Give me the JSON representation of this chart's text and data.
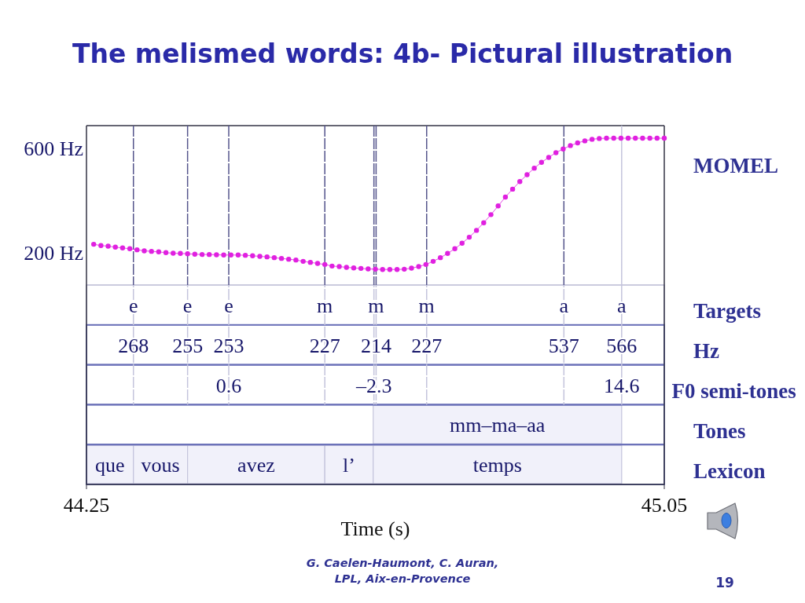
{
  "chart_data": {
    "type": "line",
    "title": "The melismed words: 4b- Pictural illustration",
    "xlabel": "Time (s)",
    "xlim": [
      44.25,
      45.05
    ],
    "xticks": [
      44.25,
      45.05
    ],
    "ylim": [
      -680,
      687
    ],
    "yticks": [
      {
        "value": 200,
        "label": "200 Hz"
      },
      {
        "value": 600,
        "label": "600 Hz"
      }
    ],
    "marker": "circle",
    "series": [
      {
        "name": "MOMEL",
        "color": "#e020e0",
        "x": [
          44.26,
          44.27,
          44.28,
          44.29,
          44.3,
          44.31,
          44.32,
          44.33,
          44.34,
          44.35,
          44.36,
          44.37,
          44.38,
          44.39,
          44.4,
          44.41,
          44.42,
          44.43,
          44.44,
          44.45,
          44.46,
          44.47,
          44.48,
          44.49,
          44.5,
          44.51,
          44.52,
          44.53,
          44.54,
          44.55,
          44.56,
          44.57,
          44.58,
          44.59,
          44.6,
          44.61,
          44.62,
          44.63,
          44.64,
          44.65,
          44.66,
          44.67,
          44.68,
          44.69,
          44.7,
          44.71,
          44.72,
          44.73,
          44.74,
          44.75,
          44.76,
          44.77,
          44.78,
          44.79,
          44.8,
          44.81,
          44.82,
          44.83,
          44.84,
          44.85,
          44.86,
          44.87,
          44.88,
          44.89,
          44.9,
          44.91,
          44.92,
          44.93,
          44.94,
          44.95,
          44.96,
          44.97,
          44.98,
          44.99,
          45.0,
          45.01,
          45.02,
          45.03,
          45.04,
          45.05
        ],
        "values": [
          235,
          230,
          228,
          224,
          221,
          218,
          214,
          210,
          208,
          206,
          203,
          201,
          200,
          199,
          197,
          196,
          196,
          195,
          194,
          194,
          194,
          193,
          191,
          189,
          187,
          184,
          181,
          178,
          175,
          170,
          166,
          162,
          158,
          152,
          150,
          147,
          145,
          143,
          141,
          140,
          139,
          139,
          139,
          140,
          144,
          150,
          158,
          170,
          184,
          200,
          218,
          239,
          262,
          288,
          317,
          348,
          381,
          415,
          445,
          474,
          500,
          525,
          547,
          566,
          584,
          598,
          611,
          621,
          629,
          635,
          638,
          639,
          639,
          639,
          639,
          639,
          639,
          639,
          639,
          639
        ]
      }
    ],
    "ref_lines": [
      {
        "axis": "x",
        "value": 44.315,
        "color": "#55558c",
        "line_style": "dashed"
      },
      {
        "axis": "x",
        "value": 44.39,
        "color": "#55558c",
        "line_style": "dashed"
      },
      {
        "axis": "x",
        "value": 44.447,
        "color": "#55558c",
        "line_style": "dashed"
      },
      {
        "axis": "x",
        "value": 44.58,
        "color": "#55558c",
        "line_style": "dashed"
      },
      {
        "axis": "x",
        "value": 44.648,
        "color": "#55558c",
        "line_style": "dashed"
      },
      {
        "axis": "x",
        "value": 44.651,
        "color": "#55558c",
        "line_style": "dashed"
      },
      {
        "axis": "x",
        "value": 44.721,
        "color": "#55558c",
        "line_style": "dashed"
      },
      {
        "axis": "x",
        "value": 44.911,
        "color": "#55558c",
        "line_style": "dashed"
      },
      {
        "axis": "x",
        "value": 44.991,
        "color": "#c4c4dc"
      }
    ],
    "bands": [
      {
        "axis": "x",
        "from": 44.647,
        "to": 44.991,
        "label": "mm–ma–aa"
      },
      {
        "axis": "x",
        "from": 44.25,
        "to": 44.315,
        "label": "que"
      },
      {
        "axis": "x",
        "from": 44.315,
        "to": 44.39,
        "label": "vous"
      },
      {
        "axis": "x",
        "from": 44.39,
        "to": 44.58,
        "label": "avez"
      },
      {
        "axis": "x",
        "from": 44.58,
        "to": 44.647,
        "label": "l’"
      },
      {
        "axis": "x",
        "from": 44.647,
        "to": 44.991,
        "label": "temps"
      }
    ],
    "annotations": [
      {
        "text": "e",
        "x": 44.315
      },
      {
        "text": "e",
        "x": 44.39
      },
      {
        "text": "e",
        "x": 44.447
      },
      {
        "text": "m",
        "x": 44.58
      },
      {
        "text": "m",
        "x": 44.651
      },
      {
        "text": "m",
        "x": 44.721
      },
      {
        "text": "a",
        "x": 44.911
      },
      {
        "text": "a",
        "x": 44.991
      },
      {
        "text": "268",
        "x": 44.315
      },
      {
        "text": "255",
        "x": 44.39
      },
      {
        "text": "253",
        "x": 44.447
      },
      {
        "text": "227",
        "x": 44.58
      },
      {
        "text": "214",
        "x": 44.651
      },
      {
        "text": "227",
        "x": 44.721
      },
      {
        "text": "537",
        "x": 44.911
      },
      {
        "text": "566",
        "x": 44.991
      },
      {
        "text": "0.6",
        "x": 44.447
      },
      {
        "text": "–2.3",
        "x": 44.648
      },
      {
        "text": "14.6",
        "x": 44.991
      },
      "Targets",
      "Hz",
      "F0 semi-tones",
      "Tones",
      "Lexicon",
      "G. Caelen-Haumont, C. Auran,",
      "LPL, Aix-en-Provence",
      "19"
    ]
  }
}
